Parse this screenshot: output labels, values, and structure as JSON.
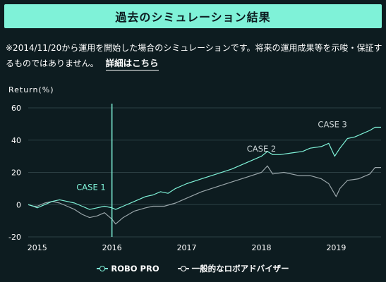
{
  "header": {
    "title": "過去のシミュレーション結果"
  },
  "notice": {
    "text": "※2014/11/20から運用を開始した場合のシミュレーションです。将来の運用成果等を示唆・保証するものではありません。",
    "link_label": "詳細はこちら"
  },
  "chart_data": {
    "type": "line",
    "ylabel": "Return(%)",
    "ylim": [
      -20,
      60
    ],
    "xlim": [
      2014.88,
      2019.6
    ],
    "yticks": [
      -20,
      0,
      20,
      40,
      60
    ],
    "xticks": [
      2015,
      2016,
      2017,
      2018,
      2019
    ],
    "grid": "horizontal",
    "legend_position": "bottom-center",
    "colors": {
      "robo_pro": "#7ff2d8",
      "general": "#9aa6aa",
      "grid": "#2c4044",
      "marker": "#7ff2d8",
      "axis_text": "#ffffff",
      "annotation": "#c9d2d4"
    },
    "annotations": [
      {
        "text": "CASE 1",
        "x": 2015.72,
        "y": 9
      },
      {
        "text": "CASE 2",
        "x": 2018.0,
        "y": 33
      },
      {
        "text": "CASE 3",
        "x": 2018.95,
        "y": 48
      }
    ],
    "marker_line_x": 2016.0,
    "series": [
      {
        "name": "ROBO PRO",
        "points": [
          [
            2014.88,
            0
          ],
          [
            2014.95,
            -1
          ],
          [
            2015.0,
            -2
          ],
          [
            2015.1,
            0
          ],
          [
            2015.2,
            2
          ],
          [
            2015.3,
            3
          ],
          [
            2015.4,
            2
          ],
          [
            2015.5,
            1
          ],
          [
            2015.6,
            -1
          ],
          [
            2015.7,
            -3
          ],
          [
            2015.8,
            -2
          ],
          [
            2015.9,
            -1
          ],
          [
            2016.0,
            -2
          ],
          [
            2016.05,
            -3
          ],
          [
            2016.15,
            -1
          ],
          [
            2016.3,
            2
          ],
          [
            2016.45,
            5
          ],
          [
            2016.55,
            6
          ],
          [
            2016.65,
            8
          ],
          [
            2016.75,
            7
          ],
          [
            2016.85,
            10
          ],
          [
            2017.0,
            13
          ],
          [
            2017.2,
            16
          ],
          [
            2017.4,
            19
          ],
          [
            2017.6,
            22
          ],
          [
            2017.75,
            25
          ],
          [
            2017.9,
            28
          ],
          [
            2018.0,
            30
          ],
          [
            2018.08,
            33
          ],
          [
            2018.15,
            31
          ],
          [
            2018.25,
            31
          ],
          [
            2018.4,
            32
          ],
          [
            2018.55,
            33
          ],
          [
            2018.65,
            35
          ],
          [
            2018.8,
            36
          ],
          [
            2018.9,
            38
          ],
          [
            2018.98,
            30
          ],
          [
            2019.05,
            35
          ],
          [
            2019.15,
            41
          ],
          [
            2019.25,
            42
          ],
          [
            2019.35,
            44
          ],
          [
            2019.45,
            46
          ],
          [
            2019.52,
            48
          ],
          [
            2019.6,
            48
          ]
        ]
      },
      {
        "name": "一般的なロボアドバイザー",
        "points": [
          [
            2014.88,
            0
          ],
          [
            2014.95,
            -1
          ],
          [
            2015.0,
            -1
          ],
          [
            2015.1,
            1
          ],
          [
            2015.2,
            2
          ],
          [
            2015.3,
            1
          ],
          [
            2015.4,
            -1
          ],
          [
            2015.5,
            -3
          ],
          [
            2015.6,
            -6
          ],
          [
            2015.7,
            -8
          ],
          [
            2015.8,
            -7
          ],
          [
            2015.9,
            -5
          ],
          [
            2016.0,
            -9
          ],
          [
            2016.05,
            -12
          ],
          [
            2016.15,
            -8
          ],
          [
            2016.3,
            -4
          ],
          [
            2016.45,
            -2
          ],
          [
            2016.55,
            -1
          ],
          [
            2016.7,
            -1
          ],
          [
            2016.85,
            1
          ],
          [
            2017.0,
            4
          ],
          [
            2017.2,
            8
          ],
          [
            2017.4,
            11
          ],
          [
            2017.6,
            14
          ],
          [
            2017.8,
            17
          ],
          [
            2018.0,
            20
          ],
          [
            2018.08,
            24
          ],
          [
            2018.15,
            19
          ],
          [
            2018.3,
            20
          ],
          [
            2018.5,
            18
          ],
          [
            2018.65,
            18
          ],
          [
            2018.8,
            16
          ],
          [
            2018.9,
            13
          ],
          [
            2019.0,
            5
          ],
          [
            2019.05,
            10
          ],
          [
            2019.15,
            15
          ],
          [
            2019.3,
            16
          ],
          [
            2019.45,
            19
          ],
          [
            2019.52,
            23
          ],
          [
            2019.6,
            23
          ]
        ]
      }
    ]
  }
}
